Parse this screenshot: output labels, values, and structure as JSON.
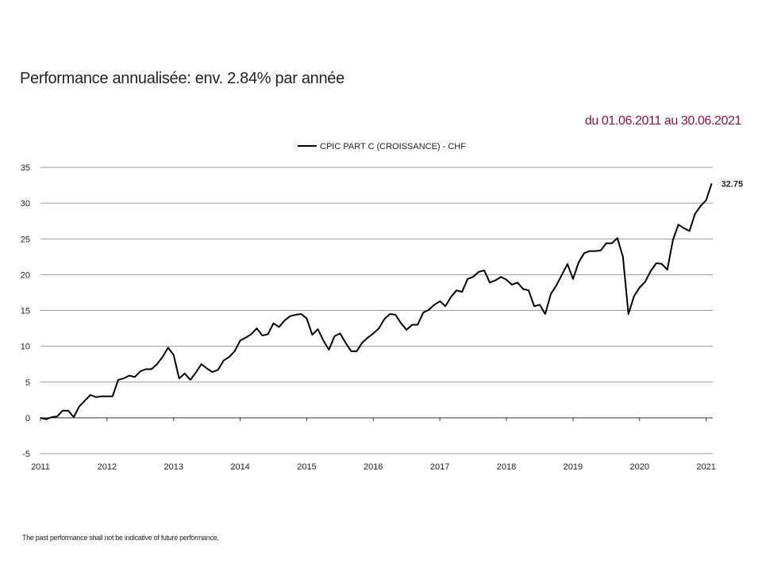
{
  "header": {
    "performance_text": "Performance annualisée: env. 2.84% par année",
    "period_text": "du 01.06.2011 au 30.06.2021"
  },
  "footer": {
    "disclaimer": "The past performance shall not be indicative of future performance."
  },
  "colors": {
    "period_text": "#8b1538",
    "series_line": "#000000",
    "gridline": "#9a9a9a"
  },
  "chart_data": {
    "type": "line",
    "title": "",
    "xlabel": "",
    "ylabel": "",
    "legend_position": "top-center",
    "grid": true,
    "ylim": [
      -5,
      35
    ],
    "xlim": [
      2011,
      2021.1
    ],
    "y_ticks": [
      -5,
      0,
      5,
      10,
      15,
      20,
      25,
      30,
      35
    ],
    "x_ticks": [
      "2011",
      "2012",
      "2013",
      "2014",
      "2015",
      "2016",
      "2017",
      "2018",
      "2019",
      "2020",
      "2021"
    ],
    "end_label": "32.75",
    "series": [
      {
        "name": "CPIC PART C (CROISSANCE) - CHF",
        "x": [
          2011.0,
          2011.083,
          2011.167,
          2011.25,
          2011.333,
          2011.417,
          2011.5,
          2011.583,
          2011.667,
          2011.75,
          2011.833,
          2011.917,
          2012.0,
          2012.083,
          2012.167,
          2012.25,
          2012.333,
          2012.417,
          2012.5,
          2012.583,
          2012.667,
          2012.75,
          2012.833,
          2012.917,
          2013.0,
          2013.083,
          2013.167,
          2013.25,
          2013.333,
          2013.417,
          2013.5,
          2013.583,
          2013.667,
          2013.75,
          2013.833,
          2013.917,
          2014.0,
          2014.083,
          2014.167,
          2014.25,
          2014.333,
          2014.417,
          2014.5,
          2014.583,
          2014.667,
          2014.75,
          2014.833,
          2014.917,
          2015.0,
          2015.083,
          2015.167,
          2015.25,
          2015.333,
          2015.417,
          2015.5,
          2015.583,
          2015.667,
          2015.75,
          2015.833,
          2015.917,
          2016.0,
          2016.083,
          2016.167,
          2016.25,
          2016.333,
          2016.417,
          2016.5,
          2016.583,
          2016.667,
          2016.75,
          2016.833,
          2016.917,
          2017.0,
          2017.083,
          2017.167,
          2017.25,
          2017.333,
          2017.417,
          2017.5,
          2017.583,
          2017.667,
          2017.75,
          2017.833,
          2017.917,
          2018.0,
          2018.083,
          2018.167,
          2018.25,
          2018.333,
          2018.417,
          2018.5,
          2018.583,
          2018.667,
          2018.75,
          2018.833,
          2018.917,
          2019.0,
          2019.083,
          2019.167,
          2019.25,
          2019.333,
          2019.417,
          2019.5,
          2019.583,
          2019.667,
          2019.75,
          2019.833,
          2019.917,
          2020.0,
          2020.083,
          2020.167,
          2020.25,
          2020.333,
          2020.417,
          2020.5,
          2020.583,
          2020.667,
          2020.75,
          2020.833,
          2020.917,
          2021.0,
          2021.083
        ],
        "values": [
          0.0,
          -0.2,
          0.1,
          0.2,
          1.0,
          1.0,
          0.1,
          1.6,
          2.4,
          3.2,
          2.9,
          3.0,
          3.0,
          3.0,
          5.3,
          5.5,
          5.9,
          5.7,
          6.5,
          6.8,
          6.8,
          7.5,
          8.5,
          9.8,
          8.8,
          5.5,
          6.2,
          5.3,
          6.3,
          7.5,
          6.9,
          6.4,
          6.7,
          8.0,
          8.5,
          9.3,
          10.8,
          11.2,
          11.7,
          12.5,
          11.5,
          11.7,
          13.2,
          12.7,
          13.6,
          14.2,
          14.4,
          14.5,
          13.9,
          11.6,
          12.4,
          10.8,
          9.5,
          11.4,
          11.8,
          10.5,
          9.3,
          9.3,
          10.5,
          11.2,
          11.8,
          12.5,
          13.8,
          14.5,
          14.4,
          13.2,
          12.3,
          13.0,
          13.0,
          14.7,
          15.1,
          15.8,
          16.3,
          15.6,
          16.9,
          17.8,
          17.6,
          19.4,
          19.7,
          20.4,
          20.6,
          18.9,
          19.2,
          19.7,
          19.3,
          18.6,
          18.9,
          18.0,
          17.8,
          15.6,
          15.8,
          14.5,
          17.3,
          18.5,
          20.0,
          21.5,
          19.4,
          21.7,
          23.0,
          23.3,
          23.3,
          23.4,
          24.4,
          24.4,
          25.1,
          22.5,
          14.5,
          17.0,
          18.2,
          19.0,
          20.5,
          21.6,
          21.5,
          20.7,
          24.8,
          27.0,
          26.5,
          26.1,
          28.5,
          29.6,
          30.4,
          32.75
        ]
      }
    ]
  }
}
